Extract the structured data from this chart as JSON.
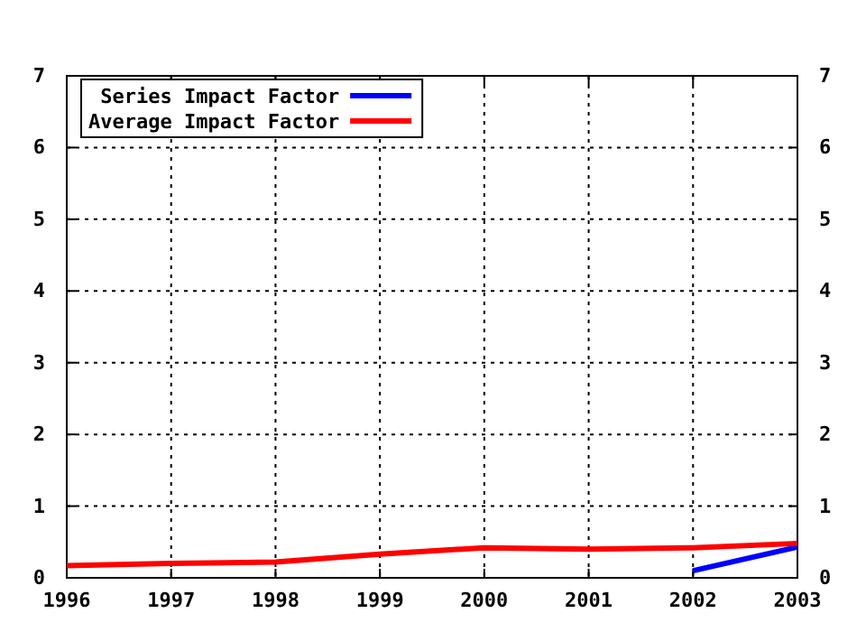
{
  "chart_data": {
    "type": "line",
    "x": [
      1996,
      1997,
      1998,
      1999,
      2000,
      2001,
      2002,
      2003
    ],
    "series": [
      {
        "name": "Series Impact Factor",
        "color": "#0000ff",
        "x": [
          2002,
          2003
        ],
        "values": [
          0.1,
          0.43
        ]
      },
      {
        "name": "Average Impact Factor",
        "color": "#ff0000",
        "values": [
          0.17,
          0.2,
          0.22,
          0.33,
          0.42,
          0.4,
          0.42,
          0.48
        ]
      }
    ],
    "xlim": [
      1996,
      2003
    ],
    "xticks": [
      1996,
      1997,
      1998,
      1999,
      2000,
      2001,
      2002,
      2003
    ],
    "ylim": [
      0,
      7
    ],
    "yticks": [
      0,
      1,
      2,
      3,
      4,
      5,
      6,
      7
    ],
    "y2lim": [
      0,
      7
    ],
    "y2ticks": [
      0,
      1,
      2,
      3,
      4,
      5,
      6,
      7
    ],
    "grid": true,
    "legend": "top left",
    "line_style": "solid",
    "marker": "none"
  }
}
